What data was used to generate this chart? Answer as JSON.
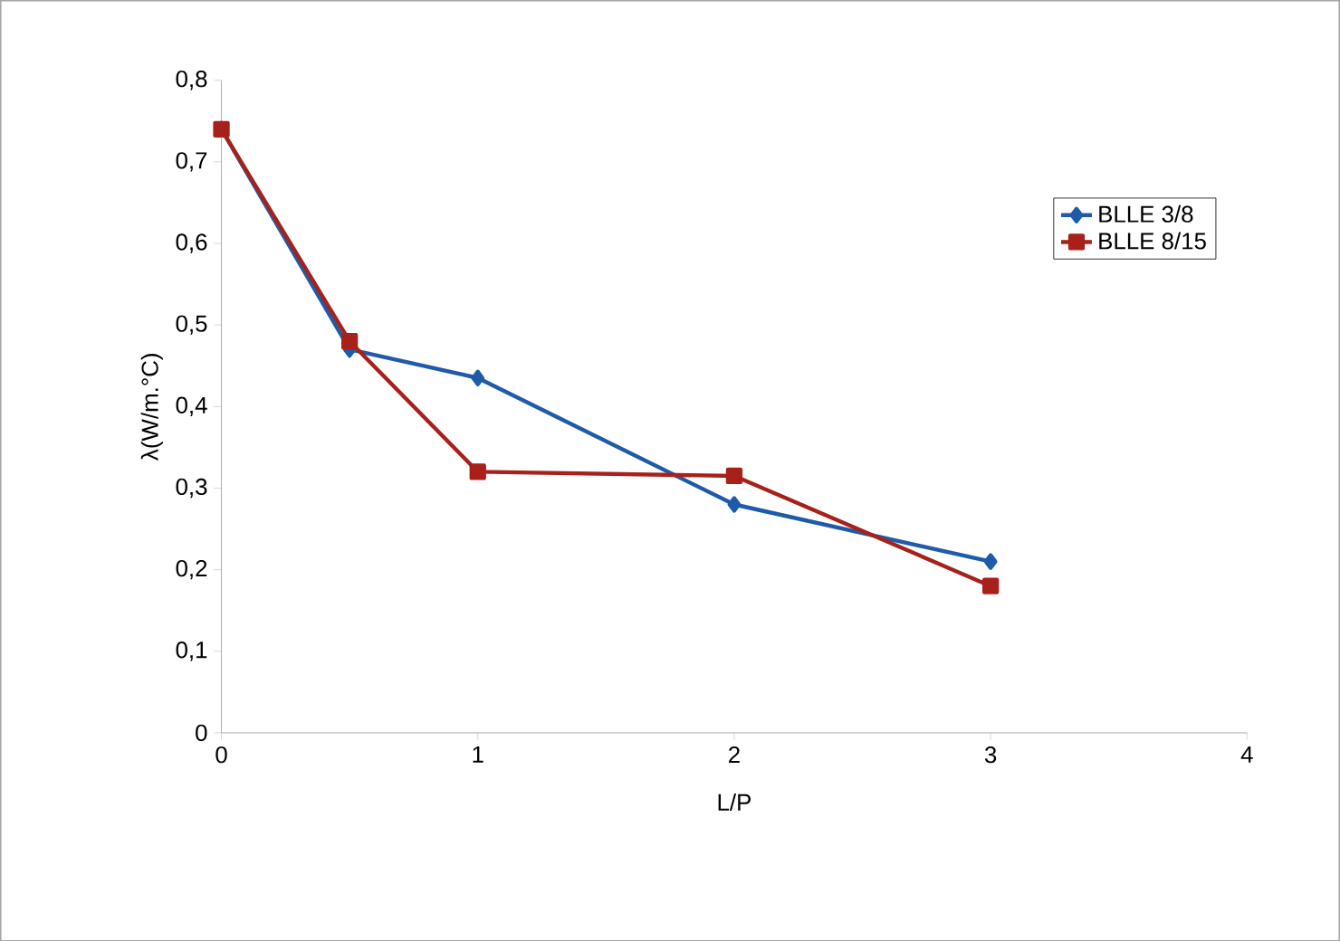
{
  "chart_data": {
    "type": "line",
    "xlabel": "L/P",
    "ylabel": "λ(W/m.°C)",
    "x": [
      0,
      0.5,
      1,
      2,
      3
    ],
    "series": [
      {
        "name": "BLLE 3/8",
        "color": "#1f5ba8",
        "marker": "diamond",
        "values": [
          0.74,
          0.47,
          0.435,
          0.28,
          0.21
        ]
      },
      {
        "name": "BLLE 8/15",
        "color": "#a8201a",
        "marker": "square",
        "values": [
          0.74,
          0.48,
          0.32,
          0.315,
          0.18
        ]
      }
    ],
    "xlim": [
      0,
      4
    ],
    "xticks": [
      0,
      1,
      2,
      3,
      4
    ],
    "ylim": [
      0,
      0.8
    ],
    "yticks": [
      0,
      {
        "value": 0.1,
        "label": "0,1"
      },
      {
        "value": 0.2,
        "label": "0,2"
      },
      {
        "value": 0.3,
        "label": "0,3"
      },
      {
        "value": 0.4,
        "label": "0,4"
      },
      {
        "value": 0.5,
        "label": "0,5"
      },
      {
        "value": 0.6,
        "label": "0,6"
      },
      {
        "value": 0.7,
        "label": "0,7"
      },
      {
        "value": 0.8,
        "label": "0,8"
      }
    ],
    "grid": false,
    "legend": "top right",
    "line_style": "solid"
  }
}
